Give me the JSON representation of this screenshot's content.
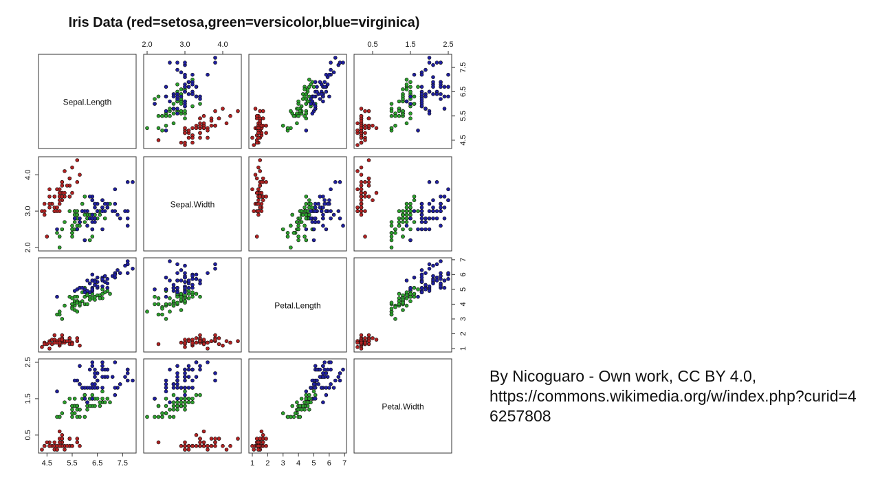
{
  "chart_data": {
    "type": "scatter",
    "title": "Iris Data (red=setosa,green=versicolor,blue=virginica)",
    "variables": [
      "Sepal.Length",
      "Sepal.Width",
      "Petal.Length",
      "Petal.Width"
    ],
    "axes": {
      "Sepal.Length": {
        "range": [
          4.3,
          7.9
        ],
        "ticks": [
          "4.5",
          "5.5",
          "6.5",
          "7.5"
        ]
      },
      "Sepal.Width": {
        "range": [
          2.0,
          4.4
        ],
        "ticks": [
          "2.0",
          "3.0",
          "4.0"
        ]
      },
      "Petal.Length": {
        "range": [
          1.0,
          6.9
        ],
        "ticks": [
          "1",
          "2",
          "3",
          "4",
          "5",
          "6",
          "7"
        ]
      },
      "Petal.Width": {
        "range": [
          0.1,
          2.5
        ],
        "ticks": [
          "0.5",
          "1.5",
          "2.5"
        ]
      }
    },
    "grid": false,
    "legend": "none",
    "series": [
      {
        "name": "setosa",
        "color": "#b22222",
        "points": [
          [
            5.1,
            3.5,
            1.4,
            0.2
          ],
          [
            4.9,
            3.0,
            1.4,
            0.2
          ],
          [
            4.7,
            3.2,
            1.3,
            0.2
          ],
          [
            4.6,
            3.1,
            1.5,
            0.2
          ],
          [
            5.0,
            3.6,
            1.4,
            0.2
          ],
          [
            5.4,
            3.9,
            1.7,
            0.4
          ],
          [
            4.6,
            3.4,
            1.4,
            0.3
          ],
          [
            5.0,
            3.4,
            1.5,
            0.2
          ],
          [
            4.4,
            2.9,
            1.4,
            0.2
          ],
          [
            4.9,
            3.1,
            1.5,
            0.1
          ],
          [
            5.4,
            3.7,
            1.5,
            0.2
          ],
          [
            4.8,
            3.4,
            1.6,
            0.2
          ],
          [
            4.8,
            3.0,
            1.4,
            0.1
          ],
          [
            4.3,
            3.0,
            1.1,
            0.1
          ],
          [
            5.8,
            4.0,
            1.2,
            0.2
          ],
          [
            5.7,
            4.4,
            1.5,
            0.4
          ],
          [
            5.4,
            3.9,
            1.3,
            0.4
          ],
          [
            5.1,
            3.5,
            1.4,
            0.3
          ],
          [
            5.7,
            3.8,
            1.7,
            0.3
          ],
          [
            5.1,
            3.8,
            1.5,
            0.3
          ],
          [
            5.4,
            3.4,
            1.7,
            0.2
          ],
          [
            5.1,
            3.7,
            1.5,
            0.4
          ],
          [
            4.6,
            3.6,
            1.0,
            0.2
          ],
          [
            5.1,
            3.3,
            1.7,
            0.5
          ],
          [
            4.8,
            3.4,
            1.9,
            0.2
          ],
          [
            5.0,
            3.0,
            1.6,
            0.2
          ],
          [
            5.0,
            3.4,
            1.6,
            0.4
          ],
          [
            5.2,
            3.5,
            1.5,
            0.2
          ],
          [
            5.2,
            3.4,
            1.4,
            0.2
          ],
          [
            4.7,
            3.2,
            1.6,
            0.2
          ],
          [
            4.8,
            3.1,
            1.6,
            0.2
          ],
          [
            5.4,
            3.4,
            1.5,
            0.4
          ],
          [
            5.2,
            4.1,
            1.5,
            0.1
          ],
          [
            5.5,
            4.2,
            1.4,
            0.2
          ],
          [
            4.9,
            3.1,
            1.5,
            0.2
          ],
          [
            5.0,
            3.2,
            1.2,
            0.2
          ],
          [
            5.5,
            3.5,
            1.3,
            0.2
          ],
          [
            4.9,
            3.6,
            1.4,
            0.1
          ],
          [
            4.4,
            3.0,
            1.3,
            0.2
          ],
          [
            5.1,
            3.4,
            1.5,
            0.2
          ],
          [
            5.0,
            3.5,
            1.3,
            0.3
          ],
          [
            4.5,
            2.3,
            1.3,
            0.3
          ],
          [
            4.4,
            3.2,
            1.3,
            0.2
          ],
          [
            5.0,
            3.5,
            1.6,
            0.6
          ],
          [
            5.1,
            3.8,
            1.9,
            0.4
          ],
          [
            4.8,
            3.0,
            1.4,
            0.3
          ],
          [
            5.1,
            3.8,
            1.6,
            0.2
          ],
          [
            4.6,
            3.2,
            1.4,
            0.2
          ],
          [
            5.3,
            3.7,
            1.5,
            0.2
          ],
          [
            5.0,
            3.3,
            1.4,
            0.2
          ]
        ]
      },
      {
        "name": "versicolor",
        "color": "#2ca02c",
        "points": [
          [
            7.0,
            3.2,
            4.7,
            1.4
          ],
          [
            6.4,
            3.2,
            4.5,
            1.5
          ],
          [
            6.9,
            3.1,
            4.9,
            1.5
          ],
          [
            5.5,
            2.3,
            4.0,
            1.3
          ],
          [
            6.5,
            2.8,
            4.6,
            1.5
          ],
          [
            5.7,
            2.8,
            4.5,
            1.3
          ],
          [
            6.3,
            3.3,
            4.7,
            1.6
          ],
          [
            4.9,
            2.4,
            3.3,
            1.0
          ],
          [
            6.6,
            2.9,
            4.6,
            1.3
          ],
          [
            5.2,
            2.7,
            3.9,
            1.4
          ],
          [
            5.0,
            2.0,
            3.5,
            1.0
          ],
          [
            5.9,
            3.0,
            4.2,
            1.5
          ],
          [
            6.0,
            2.2,
            4.0,
            1.0
          ],
          [
            6.1,
            2.9,
            4.7,
            1.4
          ],
          [
            5.6,
            2.9,
            3.6,
            1.3
          ],
          [
            6.7,
            3.1,
            4.4,
            1.4
          ],
          [
            5.6,
            3.0,
            4.5,
            1.5
          ],
          [
            5.8,
            2.7,
            4.1,
            1.0
          ],
          [
            6.2,
            2.2,
            4.5,
            1.5
          ],
          [
            5.6,
            2.5,
            3.9,
            1.1
          ],
          [
            5.9,
            3.2,
            4.8,
            1.8
          ],
          [
            6.1,
            2.8,
            4.0,
            1.3
          ],
          [
            6.3,
            2.5,
            4.9,
            1.5
          ],
          [
            6.1,
            2.8,
            4.7,
            1.2
          ],
          [
            6.4,
            2.9,
            4.3,
            1.3
          ],
          [
            6.6,
            3.0,
            4.4,
            1.4
          ],
          [
            6.8,
            2.8,
            4.8,
            1.4
          ],
          [
            6.7,
            3.0,
            5.0,
            1.7
          ],
          [
            6.0,
            2.9,
            4.5,
            1.5
          ],
          [
            5.7,
            2.6,
            3.5,
            1.0
          ],
          [
            5.5,
            2.4,
            3.8,
            1.1
          ],
          [
            5.5,
            2.4,
            3.7,
            1.0
          ],
          [
            5.8,
            2.7,
            3.9,
            1.2
          ],
          [
            6.0,
            2.7,
            5.1,
            1.6
          ],
          [
            5.4,
            3.0,
            4.5,
            1.5
          ],
          [
            6.0,
            3.4,
            4.5,
            1.6
          ],
          [
            6.7,
            3.1,
            4.7,
            1.5
          ],
          [
            6.3,
            2.3,
            4.4,
            1.3
          ],
          [
            5.6,
            3.0,
            4.1,
            1.3
          ],
          [
            5.5,
            2.5,
            4.0,
            1.3
          ],
          [
            5.5,
            2.6,
            4.4,
            1.2
          ],
          [
            6.1,
            3.0,
            4.6,
            1.4
          ],
          [
            5.8,
            2.6,
            4.0,
            1.2
          ],
          [
            5.0,
            2.3,
            3.3,
            1.0
          ],
          [
            5.6,
            2.7,
            4.2,
            1.3
          ],
          [
            5.7,
            3.0,
            4.2,
            1.2
          ],
          [
            5.7,
            2.9,
            4.2,
            1.3
          ],
          [
            6.2,
            2.9,
            4.3,
            1.3
          ],
          [
            5.1,
            2.5,
            3.0,
            1.1
          ],
          [
            5.7,
            2.8,
            4.1,
            1.3
          ]
        ]
      },
      {
        "name": "virginica",
        "color": "#1f1fa0",
        "points": [
          [
            6.3,
            3.3,
            6.0,
            2.5
          ],
          [
            5.8,
            2.7,
            5.1,
            1.9
          ],
          [
            7.1,
            3.0,
            5.9,
            2.1
          ],
          [
            6.3,
            2.9,
            5.6,
            1.8
          ],
          [
            6.5,
            3.0,
            5.8,
            2.2
          ],
          [
            7.6,
            3.0,
            6.6,
            2.1
          ],
          [
            4.9,
            2.5,
            4.5,
            1.7
          ],
          [
            7.3,
            2.9,
            6.3,
            1.8
          ],
          [
            6.7,
            2.5,
            5.8,
            1.8
          ],
          [
            7.2,
            3.6,
            6.1,
            2.5
          ],
          [
            6.5,
            3.2,
            5.1,
            2.0
          ],
          [
            6.4,
            2.7,
            5.3,
            1.9
          ],
          [
            6.8,
            3.0,
            5.5,
            2.1
          ],
          [
            5.7,
            2.5,
            5.0,
            2.0
          ],
          [
            5.8,
            2.8,
            5.1,
            2.4
          ],
          [
            6.4,
            3.2,
            5.3,
            2.3
          ],
          [
            6.5,
            3.0,
            5.5,
            1.8
          ],
          [
            7.7,
            3.8,
            6.7,
            2.2
          ],
          [
            7.7,
            2.6,
            6.9,
            2.3
          ],
          [
            6.0,
            2.2,
            5.0,
            1.5
          ],
          [
            6.9,
            3.2,
            5.7,
            2.3
          ],
          [
            5.6,
            2.8,
            4.9,
            2.0
          ],
          [
            7.7,
            2.8,
            6.7,
            2.0
          ],
          [
            6.3,
            2.7,
            4.9,
            1.8
          ],
          [
            6.7,
            3.3,
            5.7,
            2.1
          ],
          [
            7.2,
            3.2,
            6.0,
            1.8
          ],
          [
            6.2,
            2.8,
            4.8,
            1.8
          ],
          [
            6.1,
            3.0,
            4.9,
            1.8
          ],
          [
            6.4,
            2.8,
            5.6,
            2.1
          ],
          [
            7.2,
            3.0,
            5.8,
            1.6
          ],
          [
            7.4,
            2.8,
            6.1,
            1.9
          ],
          [
            7.9,
            3.8,
            6.4,
            2.0
          ],
          [
            6.4,
            2.8,
            5.6,
            2.2
          ],
          [
            6.3,
            2.8,
            5.1,
            1.5
          ],
          [
            6.1,
            2.6,
            5.6,
            1.4
          ],
          [
            7.7,
            3.0,
            6.1,
            2.3
          ],
          [
            6.3,
            3.4,
            5.6,
            2.4
          ],
          [
            6.4,
            3.1,
            5.5,
            1.8
          ],
          [
            6.0,
            3.0,
            4.8,
            1.8
          ],
          [
            6.9,
            3.1,
            5.4,
            2.1
          ],
          [
            6.7,
            3.1,
            5.6,
            2.4
          ],
          [
            6.9,
            3.1,
            5.1,
            2.3
          ],
          [
            5.8,
            2.7,
            5.1,
            1.9
          ],
          [
            6.8,
            3.2,
            5.9,
            2.3
          ],
          [
            6.7,
            3.3,
            5.7,
            2.5
          ],
          [
            6.7,
            3.0,
            5.2,
            2.3
          ],
          [
            6.3,
            2.5,
            5.0,
            1.9
          ],
          [
            6.5,
            3.0,
            5.2,
            2.0
          ],
          [
            6.2,
            3.4,
            5.4,
            2.3
          ],
          [
            5.9,
            3.0,
            5.1,
            1.8
          ]
        ]
      }
    ]
  },
  "credit": {
    "line1": "By Nicoguaro - Own work, CC BY 4.0,",
    "line2": "https://commons.wikimedia.org/w/index.php?curid=46257808"
  }
}
